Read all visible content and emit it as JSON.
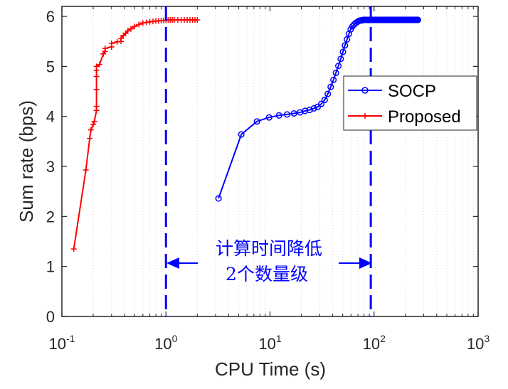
{
  "chart_data": {
    "type": "line",
    "xscale": "log",
    "xlim": [
      0.1,
      1000
    ],
    "ylim": [
      0,
      6.2
    ],
    "xlabel": "CPU Time (s)",
    "ylabel": "Sum rate (bps)",
    "x_ticks": [
      {
        "value": 0.1,
        "base": "10",
        "exp": "-1"
      },
      {
        "value": 1,
        "base": "10",
        "exp": "0"
      },
      {
        "value": 10,
        "base": "10",
        "exp": "1"
      },
      {
        "value": 100,
        "base": "10",
        "exp": "2"
      },
      {
        "value": 1000,
        "base": "10",
        "exp": "3"
      }
    ],
    "y_ticks": [
      "0",
      "1",
      "2",
      "3",
      "4",
      "5",
      "6"
    ],
    "grid": "minor-vertical",
    "legend_position": "right",
    "colors": {
      "socp": "#0000ff",
      "proposed": "#ff0000",
      "annotation": "#0000ff",
      "axis": "#262626",
      "grid": "#d9d9d9"
    },
    "series": [
      {
        "name": "SOCP",
        "color": "#0000ff",
        "marker": "circle",
        "x": [
          3.2,
          5.3,
          7.5,
          9.8,
          12.2,
          14.6,
          17.0,
          19.4,
          21.7,
          24.0,
          26.4,
          28.7,
          31.1,
          33.5,
          35.9,
          38.3,
          40.7,
          43.0,
          45.4,
          47.8,
          50.2,
          52.5,
          54.9,
          57.3,
          59.6,
          62.0,
          64.4,
          66.8,
          69.2,
          71.5,
          73.9,
          76.3,
          78.7,
          81.0,
          83.4,
          85.8,
          88.2,
          90.6,
          92.9,
          95.3,
          97.7,
          100.1,
          102.4,
          104.8,
          107.2,
          109.6,
          112.0,
          114.3,
          116.7,
          119.1,
          121.5,
          123.8,
          126.2,
          128.6,
          131.0,
          133.4,
          135.7,
          138.1,
          140.5,
          142.9,
          145.2,
          147.6,
          150.0,
          152.4,
          154.7,
          157.1,
          159.5,
          161.9,
          164.3,
          166.6,
          169.0,
          171.4,
          173.8,
          176.1,
          178.5,
          180.9,
          183.3,
          185.7,
          188.0,
          190.4,
          192.8,
          195.2,
          197.5,
          199.9,
          202.3,
          204.7,
          207.0,
          209.4,
          211.8,
          214.2,
          216.6,
          218.9,
          221.3,
          223.7,
          226.1,
          228.4,
          230.8,
          233.2,
          235.6,
          238.0,
          240.3,
          242.7,
          245.1,
          247.5,
          249.8,
          252.2,
          254.6,
          257.0,
          259.4,
          261.7,
          264.1
        ],
        "y": [
          2.36,
          3.64,
          3.9,
          3.98,
          4.02,
          4.04,
          4.06,
          4.08,
          4.11,
          4.13,
          4.16,
          4.19,
          4.25,
          4.33,
          4.45,
          4.59,
          4.73,
          4.87,
          5.01,
          5.15,
          5.29,
          5.42,
          5.54,
          5.65,
          5.74,
          5.8,
          5.84,
          5.87,
          5.89,
          5.91,
          5.92,
          5.92,
          5.93,
          5.93,
          5.93,
          5.93,
          5.93,
          5.93,
          5.93,
          5.93,
          5.93,
          5.93,
          5.93,
          5.93,
          5.93,
          5.93,
          5.93,
          5.93,
          5.93,
          5.93,
          5.93,
          5.93,
          5.93,
          5.93,
          5.93,
          5.93,
          5.93,
          5.93,
          5.93,
          5.93,
          5.93,
          5.93,
          5.93,
          5.93,
          5.93,
          5.93,
          5.93,
          5.93,
          5.93,
          5.93,
          5.93,
          5.93,
          5.93,
          5.93,
          5.93,
          5.93,
          5.93,
          5.93,
          5.93,
          5.93,
          5.93,
          5.93,
          5.93,
          5.93,
          5.93,
          5.93,
          5.93,
          5.93,
          5.93,
          5.93,
          5.93,
          5.93,
          5.93,
          5.93,
          5.93,
          5.93,
          5.93,
          5.93,
          5.93,
          5.93,
          5.93,
          5.93,
          5.93,
          5.93,
          5.93,
          5.93,
          5.93,
          5.93,
          5.93,
          5.93,
          5.93
        ]
      },
      {
        "name": "Proposed",
        "color": "#ff0000",
        "marker": "plus",
        "x": [
          0.13,
          0.17,
          0.185,
          0.19,
          0.2,
          0.205,
          0.215,
          0.215,
          0.215,
          0.215,
          0.215,
          0.215,
          0.23,
          0.25,
          0.26,
          0.26,
          0.3,
          0.3,
          0.34,
          0.37,
          0.37,
          0.39,
          0.41,
          0.43,
          0.46,
          0.5,
          0.55,
          0.6,
          0.65,
          0.7,
          0.75,
          0.8,
          0.85,
          0.9,
          0.95,
          1.0,
          1.05,
          1.1,
          1.15,
          1.2,
          1.3,
          1.4,
          1.5,
          1.6,
          1.7,
          1.8,
          1.9,
          2.0
        ],
        "y": [
          1.35,
          2.93,
          3.56,
          3.73,
          3.84,
          3.9,
          4.12,
          4.2,
          4.54,
          4.8,
          4.92,
          5.0,
          5.04,
          5.25,
          5.3,
          5.36,
          5.39,
          5.46,
          5.49,
          5.5,
          5.56,
          5.62,
          5.66,
          5.71,
          5.75,
          5.8,
          5.84,
          5.87,
          5.88,
          5.89,
          5.9,
          5.91,
          5.91,
          5.92,
          5.92,
          5.92,
          5.93,
          5.93,
          5.93,
          5.93,
          5.93,
          5.93,
          5.93,
          5.93,
          5.93,
          5.93,
          5.93,
          5.93
        ]
      }
    ],
    "vlines": [
      1.0,
      93.0
    ],
    "annotation": {
      "line1": "计算时间降低",
      "line2": "2个数量级"
    }
  }
}
